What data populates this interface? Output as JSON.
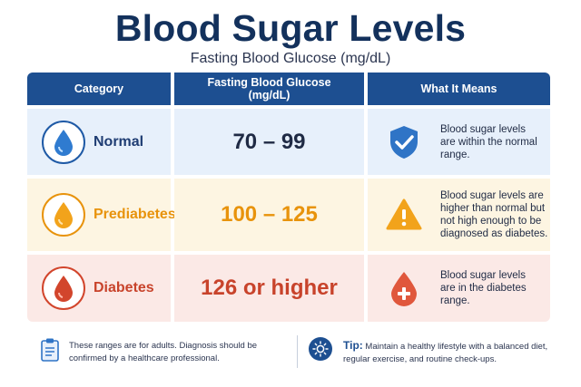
{
  "header": {
    "title": "Blood Sugar Levels",
    "subtitle": "Fasting Blood Glucose (mg/dL)"
  },
  "table": {
    "columns": [
      "Category",
      "Fasting Blood Glucose (mg/dL)",
      "What It Means"
    ],
    "rows": [
      {
        "category": "Normal",
        "range": "70 – 99",
        "meaning": "Blood sugar levels are within the normal range.",
        "icon": "water-drop-icon",
        "meaning_icon": "shield-check-icon",
        "color": "#1f5aa6",
        "background": "#e7f0fb"
      },
      {
        "category": "Prediabetes",
        "range": "100 – 125",
        "meaning": "Blood sugar levels are higher than normal but not high enough to be diagnosed as diabetes.",
        "icon": "water-drop-icon",
        "meaning_icon": "warning-triangle-icon",
        "color": "#e8930c",
        "background": "#fdf5e2"
      },
      {
        "category": "Diabetes",
        "range": "126 or higher",
        "meaning": "Blood sugar levels are in the diabetes range.",
        "icon": "blood-drop-icon",
        "meaning_icon": "blood-drop-plus-icon",
        "color": "#d2452c",
        "background": "#fbe9e6"
      }
    ]
  },
  "footer": {
    "note": "These ranges are for adults. Diagnosis should be confirmed by a healthcare professional.",
    "note_icon": "clipboard-icon",
    "tip_label": "Tip:",
    "tip_text": "Maintain a healthy lifestyle with a balanced diet, regular exercise, and routine check-ups.",
    "tip_icon": "sun-icon"
  },
  "colors": {
    "header_bg": "#1d4f91",
    "title": "#13315c"
  }
}
